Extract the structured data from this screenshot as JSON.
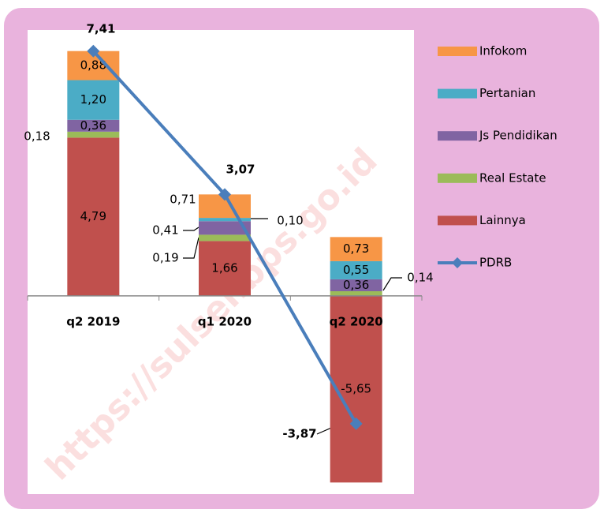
{
  "chart_data": {
    "type": "bar",
    "stacked": true,
    "categories": [
      "q2 2019",
      "q1 2020",
      "q2 2020"
    ],
    "series": [
      {
        "name": "Lainnya",
        "color": "#c0504d",
        "values": [
          4.79,
          1.66,
          -5.65
        ],
        "value_labels": [
          "4,79",
          "1,66",
          "-5,65"
        ]
      },
      {
        "name": "Real Estate",
        "color": "#9bbb59",
        "values": [
          0.18,
          0.19,
          0.14
        ],
        "value_labels": [
          "0,18",
          "0,19",
          "0,14"
        ]
      },
      {
        "name": "Js Pendidikan",
        "color": "#8064a2",
        "values": [
          0.36,
          0.41,
          0.36
        ],
        "value_labels": [
          "0,36",
          "0,41",
          "0,36"
        ]
      },
      {
        "name": "Pertanian",
        "color": "#4bacc6",
        "values": [
          1.2,
          0.1,
          0.55
        ],
        "value_labels": [
          "1,20",
          "0,10",
          "0,55"
        ]
      },
      {
        "name": "Infokom",
        "color": "#f79646",
        "values": [
          0.88,
          0.71,
          0.73
        ],
        "value_labels": [
          "0,88",
          "0,71",
          "0,73"
        ]
      },
      {
        "name": "PDRB",
        "type": "line",
        "color": "#4a7ebb",
        "values": [
          7.41,
          3.07,
          -3.87
        ],
        "value_labels": [
          "7,41",
          "3,07",
          "-3,87"
        ]
      }
    ],
    "ylim": [
      -6,
      8
    ],
    "legend": "right",
    "watermark": "https://sulsel.bps.go.id"
  }
}
